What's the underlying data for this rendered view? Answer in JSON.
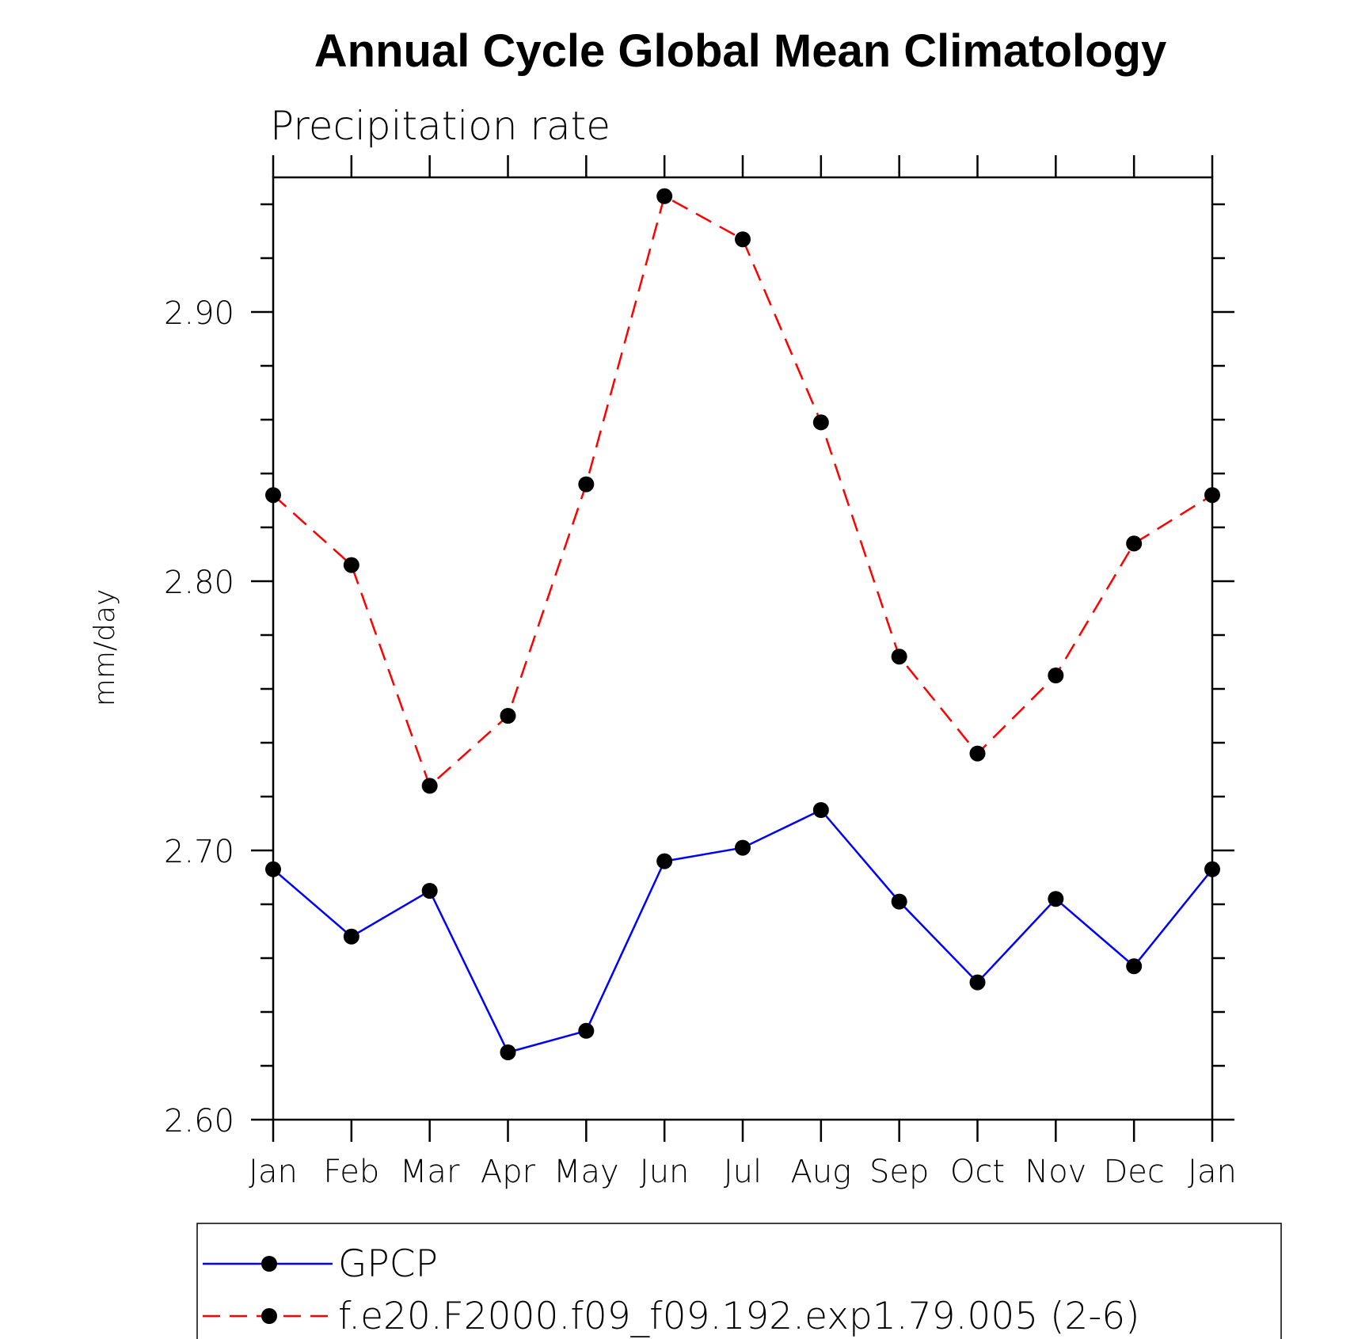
{
  "chart_data": {
    "type": "line",
    "title": "Annual Cycle Global Mean Climatology",
    "subtitle": "Precipitation rate",
    "xlabel": "",
    "ylabel": "mm/day",
    "categories": [
      "Jan",
      "Feb",
      "Mar",
      "Apr",
      "May",
      "Jun",
      "Jul",
      "Aug",
      "Sep",
      "Oct",
      "Nov",
      "Dec",
      "Jan"
    ],
    "ylim": [
      2.6,
      2.95
    ],
    "yticks": [
      2.6,
      2.7,
      2.8,
      2.9
    ],
    "ytick_labels": [
      "2.60",
      "2.70",
      "2.80",
      "2.90"
    ],
    "grid": false,
    "legend_position": "bottom",
    "series": [
      {
        "name": "GPCP",
        "color": "#0000ff",
        "line_style": "solid",
        "marker": "filled-circle",
        "values": [
          2.693,
          2.668,
          2.685,
          2.625,
          2.633,
          2.696,
          2.701,
          2.715,
          2.681,
          2.651,
          2.682,
          2.657,
          2.693
        ]
      },
      {
        "name": "f.e20.F2000.f09_f09.192.exp1.79.005 (2-6)",
        "color": "#ff0000",
        "line_style": "dashed",
        "marker": "filled-circle",
        "values": [
          2.832,
          2.806,
          2.724,
          2.75,
          2.836,
          2.943,
          2.927,
          2.859,
          2.772,
          2.736,
          2.765,
          2.814,
          2.832
        ]
      }
    ]
  }
}
